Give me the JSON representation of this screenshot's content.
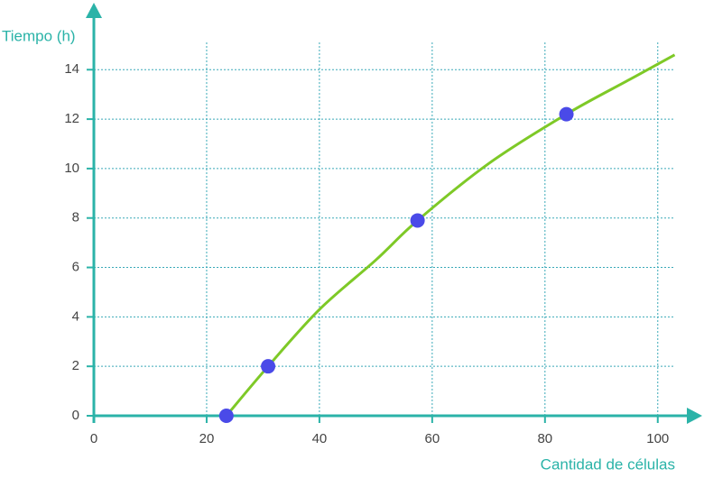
{
  "chart_data": {
    "type": "line",
    "x_label": "Cantidad de células",
    "y_label": "Tiempo (h)",
    "xlim": [
      0,
      107.4
    ],
    "ylim": [
      0,
      16.6
    ],
    "xticks": [
      0,
      20,
      40,
      60,
      80,
      100
    ],
    "yticks": [
      0,
      2,
      4,
      6,
      8,
      10,
      12,
      14
    ],
    "grid": true,
    "axis_color": "#2bb3a8",
    "grid_color": "#3aa9b8",
    "curve": {
      "color": "#7ec927",
      "x": [
        23.5,
        30.9,
        40,
        50,
        57.4,
        70,
        83.8,
        95,
        103
      ],
      "values": [
        0,
        2,
        4.3,
        6.3,
        7.9,
        10.2,
        12.2,
        13.6,
        14.6
      ]
    },
    "points": {
      "color": "#4a4ae8",
      "x": [
        23.5,
        30.9,
        57.4,
        83.8
      ],
      "values": [
        0,
        2,
        7.9,
        12.2
      ]
    }
  }
}
